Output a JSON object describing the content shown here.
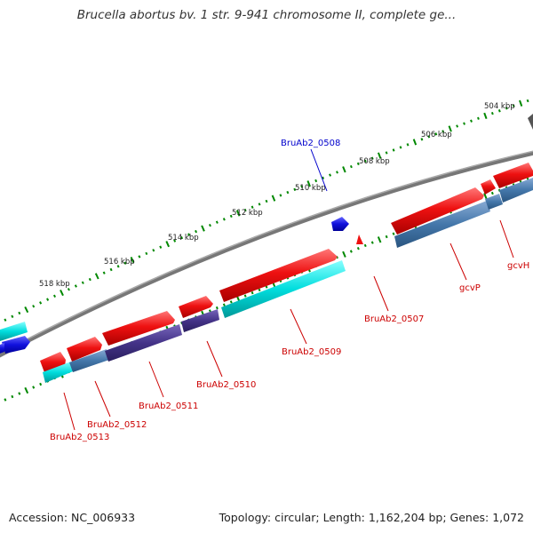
{
  "title": "Brucella abortus bv. 1 str. 9-941 chromosome II, complete ge...",
  "footer": {
    "accession": "Accession: NC_006933",
    "summary": "Topology: circular; Length: 1,162,204 bp; Genes: 1,072"
  },
  "scale": {
    "labels": [
      "504 kbp",
      "506 kbp",
      "508 kbp",
      "510 kbp",
      "512 kbp",
      "514 kbp",
      "516 kbp",
      "518 kbp"
    ]
  },
  "genes": {
    "gene_labels": [
      "BruAb2_0508",
      "gcvP",
      "gcvH",
      "BruAb2_0507",
      "BruAb2_0509",
      "BruAb2_0510",
      "BruAb2_0511",
      "BruAb2_0512",
      "BruAb2_0513"
    ]
  },
  "colors": {
    "backbone": "#777777",
    "forward_gene": "#ee1111",
    "reverse_cds_teal": "#00cccc",
    "reverse_cds_blue": "#4477aa",
    "reverse_cds_purple": "#443388",
    "small_gene_blue": "#1111dd",
    "tick_green": "#008800",
    "label_red": "#cc0000",
    "label_blue": "#0000cc"
  }
}
